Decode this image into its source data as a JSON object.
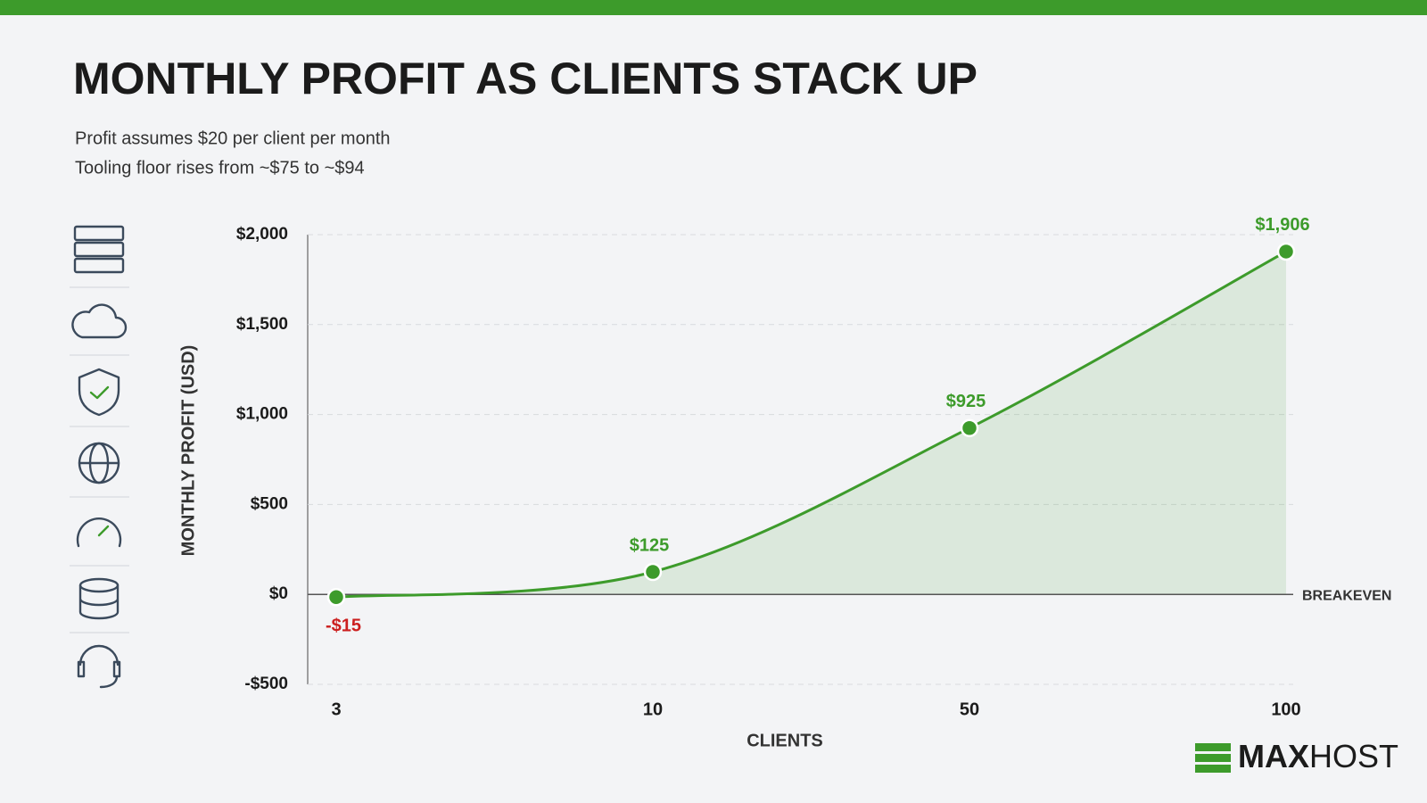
{
  "chart_data": {
    "type": "line",
    "title": "MONTHLY PROFIT AS CLIENTS STACK UP",
    "subtitle": [
      "Profit assumes $20 per client per month",
      "Tooling floor rises from ~$75 to ~$94"
    ],
    "x_label": "CLIENTS",
    "y_label": "MONTHLY PROFIT (USD)",
    "categories": [
      "3",
      "10",
      "50",
      "100"
    ],
    "values": [
      -15,
      125,
      925,
      1906
    ],
    "value_labels": [
      "-$15",
      "$125",
      "$925",
      "$1,906"
    ],
    "color": "#3d9b2b",
    "negative_color": "#cc1f1f",
    "ylim": [
      -500,
      2000
    ],
    "yticks": [
      {
        "value": -500,
        "label": "-$500"
      },
      {
        "value": 0,
        "label": "$0"
      },
      {
        "value": 500,
        "label": "$500"
      },
      {
        "value": 1000,
        "label": "$1,000"
      },
      {
        "value": 1500,
        "label": "$1,500"
      },
      {
        "value": 2000,
        "label": "$2,000"
      }
    ],
    "grid": true,
    "reference_line": {
      "value": 0,
      "label": "BREAKEVEN"
    }
  },
  "brand": {
    "bold": "MAX",
    "light": "HOST"
  }
}
